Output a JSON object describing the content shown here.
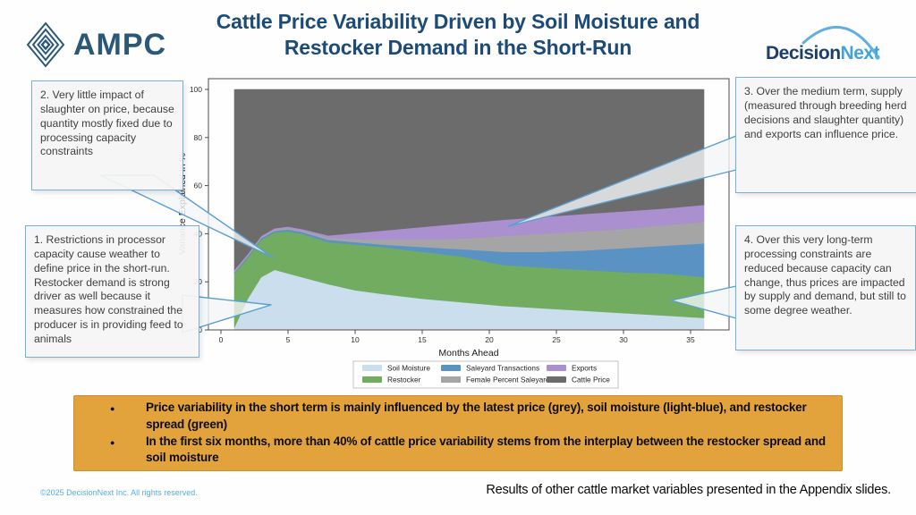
{
  "header": {
    "title_line1": "Cattle Price Variability Driven by Soil Moisture and",
    "title_line2": "Restocker Demand in the Short-Run",
    "ampc_logo_text": "AMPC",
    "decisionnext_logo_part1": "Decision",
    "decisionnext_logo_part2": "Next"
  },
  "annotations": {
    "box1_text": "1. Restrictions in processor capacity cause weather to define price in the short-run. Restocker demand is strong driver as well because it measures how constrained the producer is in providing feed to animals",
    "box2_text": "2. Very little impact of slaughter on price, because quantity mostly fixed due to processing capacity constraints",
    "box3_text": "3. Over the medium term, supply (measured through breeding herd decisions and slaughter quantity) and exports can influence price.",
    "box4_text": "4. Over this very long-term processing constraints are reduced because capacity can change, thus prices are impacted by supply and demand, but still to some degree weather."
  },
  "chart_data": {
    "type": "area",
    "stacked": true,
    "xlabel": "Months Ahead",
    "ylabel": "Variance Explained In %",
    "xticks": [
      0,
      5,
      10,
      15,
      20,
      25,
      30,
      35
    ],
    "yticks": [
      0,
      20,
      40,
      60,
      80,
      100
    ],
    "xlim": [
      -1,
      38
    ],
    "ylim": [
      0,
      104.5
    ],
    "grid": false,
    "legend_position": "bottom",
    "x": [
      1,
      2,
      3,
      4,
      5,
      6,
      8,
      10,
      12,
      15,
      18,
      21,
      24,
      27,
      30,
      33,
      36
    ],
    "series": [
      {
        "name": "Soil Moisture",
        "color": "#cbdeee",
        "values": [
          1,
          13,
          22,
          25,
          23.5,
          22,
          19,
          16.5,
          15,
          13,
          11.5,
          10,
          9,
          8,
          7,
          6,
          5
        ]
      },
      {
        "name": "Restocker",
        "color": "#71ac60",
        "values": [
          22.5,
          17,
          15.5,
          15.5,
          17.5,
          18,
          17.5,
          19,
          19.5,
          19.5,
          19,
          17,
          17,
          17,
          17,
          17.5,
          17
        ]
      },
      {
        "name": "Saleyard Transactions",
        "color": "#5a92c3",
        "values": [
          0.5,
          0.7,
          0.7,
          0.7,
          0.8,
          0.8,
          1,
          1,
          1,
          2,
          3,
          5.5,
          6.5,
          8,
          10,
          11.5,
          14
        ]
      },
      {
        "name": "Female Percent Saleyard",
        "color": "#a5a5a5",
        "values": [
          0.4,
          0.4,
          0.4,
          0.5,
          0.5,
          0.6,
          0.8,
          1.3,
          2,
          3,
          4.5,
          6.5,
          7.5,
          8,
          8,
          8.5,
          9
        ]
      },
      {
        "name": "Exports",
        "color": "#aa90cf",
        "values": [
          0.6,
          0.5,
          0.5,
          0.6,
          0.7,
          0.6,
          1,
          2.5,
          3.8,
          5.3,
          6.3,
          6.8,
          7,
          7.2,
          7.3,
          7,
          7
        ]
      },
      {
        "name": "Cattle Price",
        "color": "#6c6c6c",
        "values": [
          75,
          68.4,
          60.9,
          57.7,
          57,
          58,
          60.7,
          59.7,
          58.7,
          57.2,
          55.7,
          54.2,
          53,
          51.8,
          50.7,
          49.5,
          48
        ]
      }
    ]
  },
  "summary_box": {
    "bg_color": "#e2a23c",
    "bullets": [
      "Price variability in the short term is mainly influenced by the latest price (grey), soil moisture (light-blue), and restocker spread (green)",
      "In the first six months, more than 40% of cattle price variability stems from the interplay between the restocker spread and soil moisture"
    ]
  },
  "footer": {
    "copyright": "©2025 DecisionNext Inc. All rights reserved.",
    "note": "Results of other cattle market variables presented in the Appendix slides."
  },
  "colors": {
    "title": "#1d4b77",
    "callout_border": "#76b0d4",
    "orange": "#e2a23c",
    "footer_blue": "#54ade0"
  }
}
